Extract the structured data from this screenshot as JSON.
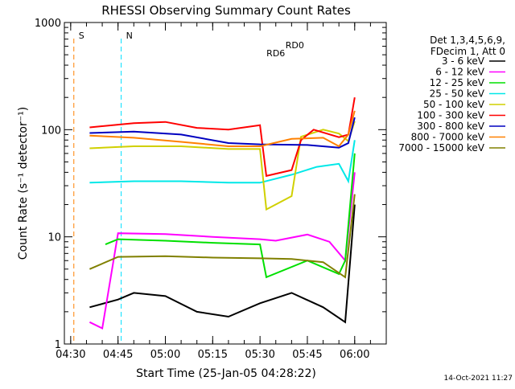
{
  "chart_data": {
    "type": "line",
    "title": "RHESSI Observing Summary Count Rates",
    "xlabel": "Start Time (25-Jan-05 04:28:22)",
    "ylabel": "Count Rate (s⁻¹ detector⁻¹)",
    "y_scale": "log",
    "xlim": [
      "04:28",
      "06:10"
    ],
    "ylim": [
      1,
      1000
    ],
    "x_ticks": [
      "04:30",
      "04:45",
      "05:00",
      "05:15",
      "05:30",
      "05:45",
      "06:00"
    ],
    "y_ticks": [
      "1",
      "10",
      "100",
      "1000"
    ],
    "legend_placement": "right",
    "legend_header": [
      "Det 1,3,4,5,6,9,",
      "FDecim 1, Att 0"
    ],
    "timestamp": "14-Oct-2021 11:27",
    "annotations": [
      {
        "label": "S",
        "time": "04:31",
        "color": "#ff8000"
      },
      {
        "label": "N",
        "time": "04:46",
        "color": "#00e0ff"
      },
      {
        "label": "RD0",
        "time": "05:41",
        "color": "#008000"
      },
      {
        "label": "RD6",
        "time": "05:35",
        "color": "#008000"
      }
    ],
    "series": [
      {
        "name": "3 - 6 keV",
        "color": "#000000",
        "values": [
          [
            "04:36",
            2.2
          ],
          [
            "04:45",
            2.6
          ],
          [
            "04:50",
            3.0
          ],
          [
            "05:00",
            2.8
          ],
          [
            "05:10",
            2.0
          ],
          [
            "05:20",
            1.8
          ],
          [
            "05:30",
            2.4
          ],
          [
            "05:40",
            3.0
          ],
          [
            "05:50",
            2.2
          ],
          [
            "05:57",
            1.6
          ],
          [
            "06:00",
            20
          ]
        ]
      },
      {
        "name": "6 - 12 keV",
        "color": "#ff00ff",
        "values": [
          [
            "04:36",
            1.6
          ],
          [
            "04:40",
            1.4
          ],
          [
            "04:45",
            10.8
          ],
          [
            "05:00",
            10.6
          ],
          [
            "05:15",
            10.0
          ],
          [
            "05:30",
            9.5
          ],
          [
            "05:35",
            9.2
          ],
          [
            "05:45",
            10.5
          ],
          [
            "05:52",
            9.0
          ],
          [
            "05:57",
            6.0
          ],
          [
            "06:00",
            40
          ]
        ]
      },
      {
        "name": "12 - 25 keV",
        "color": "#00e000",
        "values": [
          [
            "04:41",
            8.5
          ],
          [
            "04:45",
            9.5
          ],
          [
            "05:00",
            9.2
          ],
          [
            "05:15",
            8.8
          ],
          [
            "05:30",
            8.5
          ],
          [
            "05:32",
            4.2
          ],
          [
            "05:45",
            6.0
          ],
          [
            "05:55",
            4.5
          ],
          [
            "05:57",
            6.0
          ],
          [
            "06:00",
            60
          ]
        ]
      },
      {
        "name": "25 - 50 keV",
        "color": "#00e8e8",
        "values": [
          [
            "04:36",
            32
          ],
          [
            "04:50",
            33
          ],
          [
            "05:05",
            33
          ],
          [
            "05:20",
            32
          ],
          [
            "05:30",
            32
          ],
          [
            "05:40",
            38
          ],
          [
            "05:48",
            45
          ],
          [
            "05:55",
            48
          ],
          [
            "05:58",
            33
          ],
          [
            "06:00",
            80
          ]
        ]
      },
      {
        "name": "50 - 100 keV",
        "color": "#d0d000",
        "values": [
          [
            "04:36",
            67
          ],
          [
            "04:50",
            70
          ],
          [
            "05:05",
            70
          ],
          [
            "05:20",
            66
          ],
          [
            "05:30",
            66
          ],
          [
            "05:32",
            18
          ],
          [
            "05:40",
            24
          ],
          [
            "05:43",
            86
          ],
          [
            "05:50",
            100
          ],
          [
            "05:55",
            92
          ],
          [
            "05:58",
            78
          ],
          [
            "06:00",
            120
          ]
        ]
      },
      {
        "name": "100 - 300 keV",
        "color": "#ff0000",
        "values": [
          [
            "04:36",
            105
          ],
          [
            "04:50",
            115
          ],
          [
            "05:00",
            118
          ],
          [
            "05:10",
            104
          ],
          [
            "05:20",
            100
          ],
          [
            "05:30",
            110
          ],
          [
            "05:32",
            37
          ],
          [
            "05:40",
            42
          ],
          [
            "05:43",
            80
          ],
          [
            "05:47",
            100
          ],
          [
            "05:55",
            85
          ],
          [
            "05:58",
            90
          ],
          [
            "06:00",
            200
          ]
        ]
      },
      {
        "name": "300 - 800 keV",
        "color": "#0000c0",
        "values": [
          [
            "04:36",
            93
          ],
          [
            "04:50",
            96
          ],
          [
            "05:05",
            90
          ],
          [
            "05:20",
            75
          ],
          [
            "05:30",
            73
          ],
          [
            "05:45",
            72
          ],
          [
            "05:55",
            68
          ],
          [
            "05:58",
            75
          ],
          [
            "06:00",
            130
          ]
        ]
      },
      {
        "name": "800 - 7000 keV",
        "color": "#ff8000",
        "values": [
          [
            "04:36",
            88
          ],
          [
            "04:50",
            84
          ],
          [
            "05:05",
            77
          ],
          [
            "05:20",
            70
          ],
          [
            "05:30",
            70
          ],
          [
            "05:40",
            82
          ],
          [
            "05:50",
            84
          ],
          [
            "05:55",
            70
          ],
          [
            "05:58",
            90
          ],
          [
            "06:00",
            150
          ]
        ]
      },
      {
        "name": "7000 - 15000 keV",
        "color": "#808000",
        "values": [
          [
            "04:36",
            5.0
          ],
          [
            "04:45",
            6.5
          ],
          [
            "05:00",
            6.6
          ],
          [
            "05:15",
            6.4
          ],
          [
            "05:30",
            6.3
          ],
          [
            "05:40",
            6.2
          ],
          [
            "05:50",
            5.8
          ],
          [
            "05:57",
            4.2
          ],
          [
            "06:00",
            25
          ]
        ]
      }
    ]
  }
}
